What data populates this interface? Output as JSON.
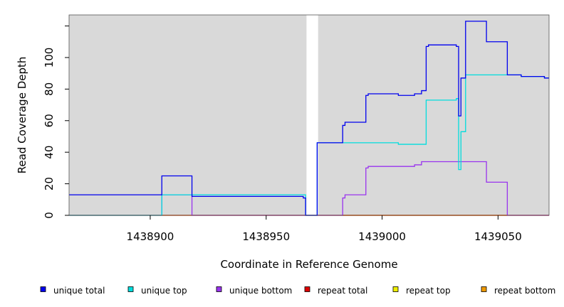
{
  "chart_data": {
    "type": "line",
    "title": "",
    "xlabel": "Coordinate in Reference Genome",
    "ylabel": "Read Coverage Depth",
    "xlim": [
      1438865,
      1439072
    ],
    "ylim": [
      0,
      127
    ],
    "x_ticks": [
      1438900,
      1438950,
      1439000,
      1439050
    ],
    "x_tick_labels": [
      "1438900",
      "1438950",
      "1439000",
      "1439050"
    ],
    "y_ticks": [
      0,
      20,
      40,
      60,
      80,
      100
    ],
    "y_tick_labels": [
      "0",
      "20",
      "40",
      "60",
      "80",
      "100"
    ],
    "grid": false,
    "legend_position": "bottom",
    "background_regions": [
      {
        "x0": 1438865,
        "x1": 1438967.4,
        "color": "#d9d9d9"
      },
      {
        "x0": 1438972.4,
        "x1": 1439072,
        "color": "#d9d9d9"
      }
    ],
    "series": [
      {
        "name": "unique total",
        "color": "#0000ee",
        "x": [
          1438865,
          1438905,
          1438905,
          1438918,
          1438918,
          1438966,
          1438966,
          1438967,
          1438967,
          1438972,
          1438972,
          1438983,
          1438983,
          1438984,
          1438984,
          1438993,
          1438993,
          1438994,
          1438994,
          1439007,
          1439007,
          1439014,
          1439014,
          1439017,
          1439017,
          1439019,
          1439019,
          1439020,
          1439020,
          1439032,
          1439032,
          1439033,
          1439033,
          1439034,
          1439034,
          1439036,
          1439036,
          1439045,
          1439045,
          1439054,
          1439054,
          1439060,
          1439060,
          1439070,
          1439070,
          1439072
        ],
        "y": [
          13,
          13,
          25,
          25,
          12,
          12,
          11,
          11,
          0,
          0,
          46,
          46,
          57,
          57,
          59,
          59,
          76,
          76,
          77,
          77,
          76,
          76,
          77,
          77,
          79,
          79,
          107,
          107,
          108,
          108,
          107,
          107,
          63,
          63,
          87,
          87,
          123,
          123,
          110,
          110,
          89,
          89,
          88,
          88,
          87,
          87
        ]
      },
      {
        "name": "unique top",
        "color": "#00dddd",
        "x": [
          1438865,
          1438905,
          1438905,
          1438967,
          1438967,
          1438972,
          1438972,
          1439007,
          1439007,
          1439019,
          1439019,
          1439032,
          1439032,
          1439033,
          1439033,
          1439034,
          1439034,
          1439036,
          1439036,
          1439054,
          1439054,
          1439060,
          1439060,
          1439070,
          1439070,
          1439072
        ],
        "y": [
          0,
          0,
          13,
          13,
          0,
          0,
          46,
          46,
          45,
          45,
          73,
          73,
          74,
          74,
          29,
          29,
          53,
          53,
          89,
          89,
          89,
          89,
          88,
          88,
          87,
          87
        ]
      },
      {
        "name": "unique bottom",
        "color": "#9933ee",
        "x": [
          1438865,
          1438905,
          1438905,
          1438918,
          1438918,
          1438983,
          1438983,
          1438984,
          1438984,
          1438993,
          1438993,
          1438994,
          1438994,
          1439014,
          1439014,
          1439017,
          1439017,
          1439045,
          1439045,
          1439054,
          1439054,
          1439072
        ],
        "y": [
          0,
          0,
          13,
          13,
          0,
          0,
          11,
          11,
          13,
          13,
          30,
          30,
          31,
          31,
          32,
          32,
          34,
          34,
          21,
          21,
          0,
          0
        ]
      },
      {
        "name": "repeat total",
        "color": "#dd0000",
        "x": [
          1438865,
          1439072
        ],
        "y": [
          0,
          0
        ]
      },
      {
        "name": "repeat top",
        "color": "#eeee00",
        "x": [
          1438865,
          1439072
        ],
        "y": [
          0,
          0
        ]
      },
      {
        "name": "repeat bottom",
        "color": "#ee9900",
        "x": [
          1438983,
          1439054
        ],
        "y": [
          0,
          0
        ]
      }
    ]
  }
}
